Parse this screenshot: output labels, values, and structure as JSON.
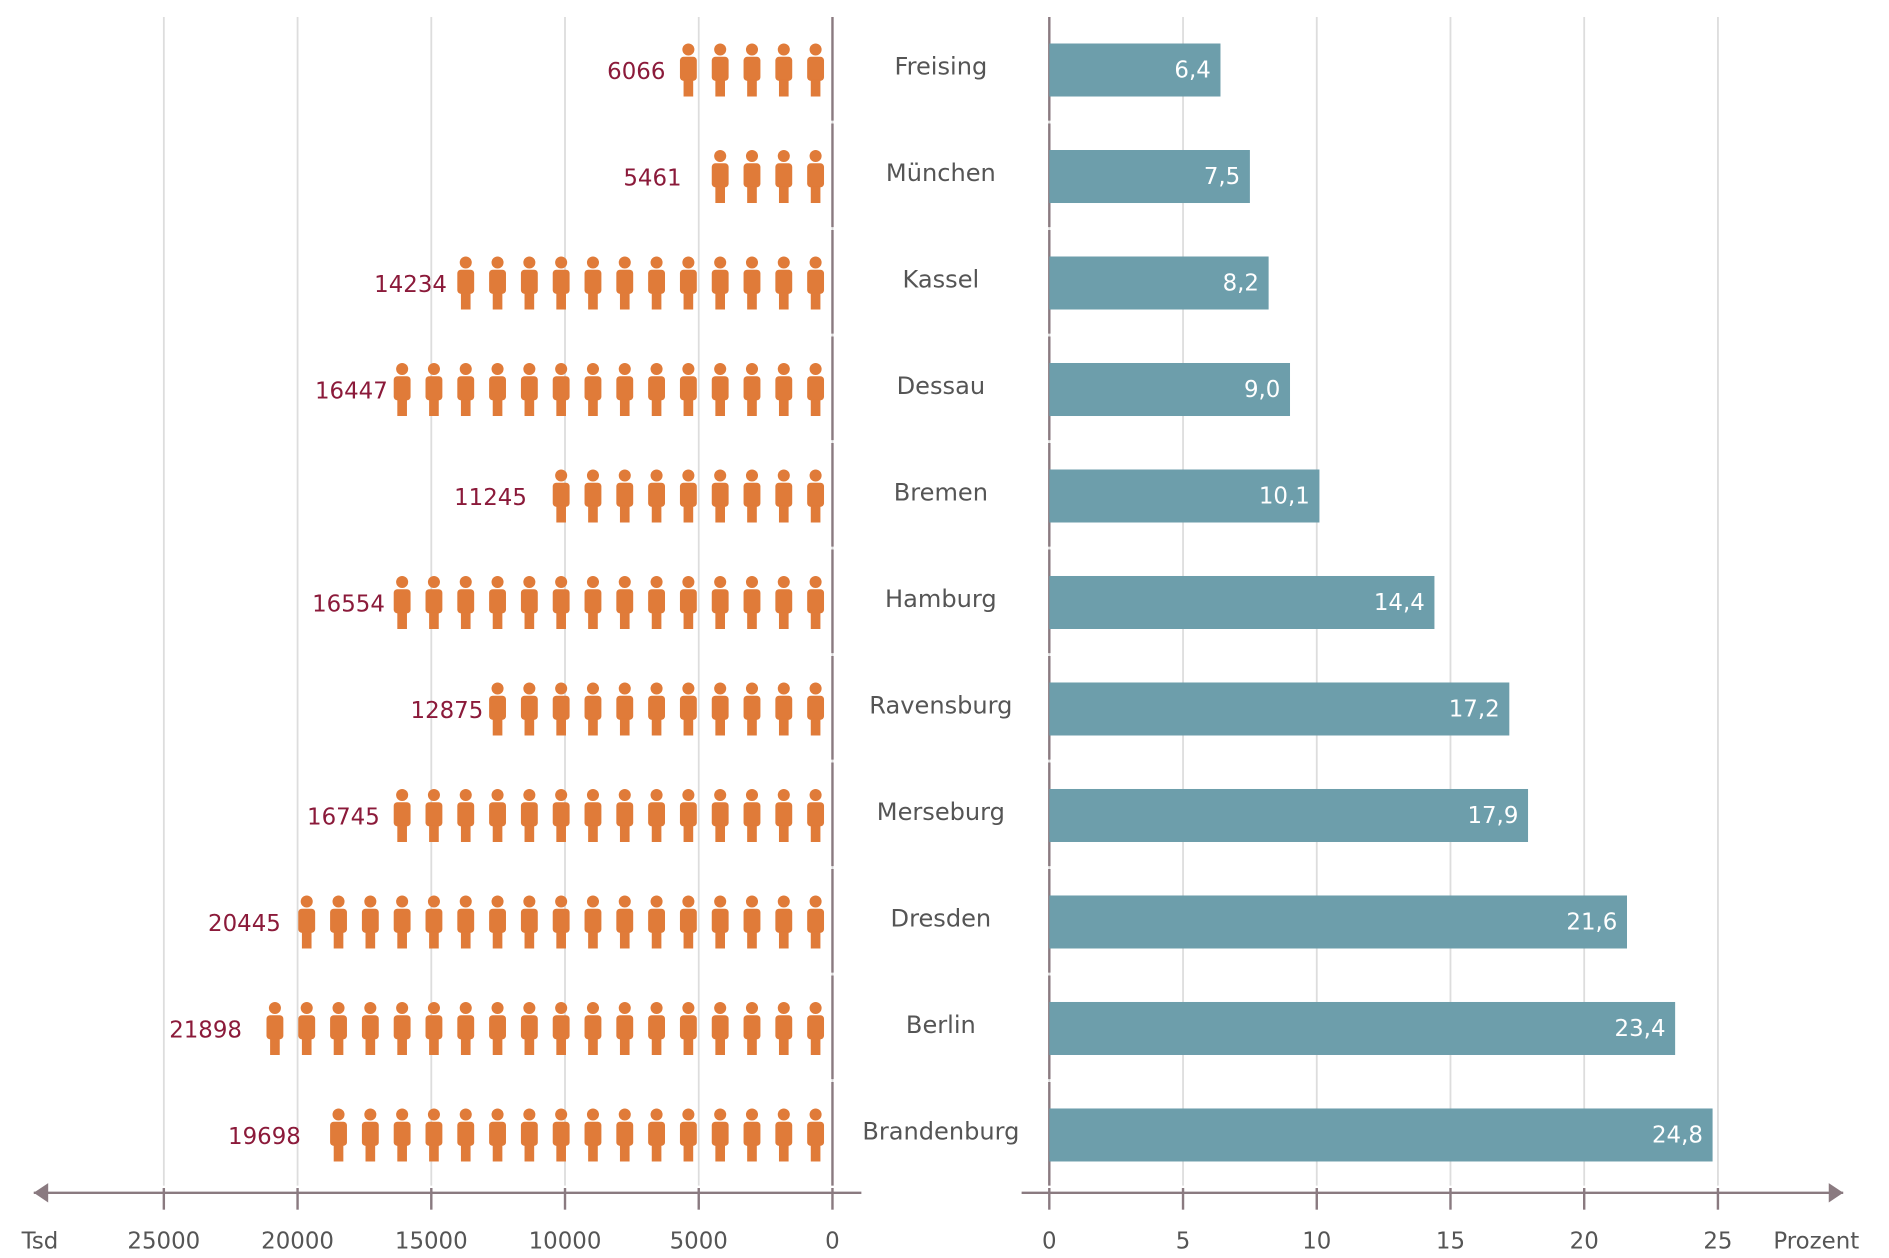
{
  "chart_data": [
    {
      "type": "pictogram",
      "categories": [
        "Freising",
        "München",
        "Kassel",
        "Dessau",
        "Bremen",
        "Hamburg",
        "Ravensburg",
        "Merseburg",
        "Dresden",
        "Berlin",
        "Brandenburg"
      ],
      "values": [
        6066,
        5461,
        14234,
        16447,
        11245,
        16554,
        12875,
        16745,
        20445,
        21898,
        19698
      ],
      "color": "#e07b39",
      "label_color": "#8b1a3a",
      "xlim": [
        0,
        30000
      ],
      "xticks": [
        0,
        5000,
        10000,
        15000,
        20000,
        25000
      ],
      "xlabel": "Tsd",
      "grid": true
    },
    {
      "type": "bar",
      "values": [
        6.4,
        7.5,
        8.2,
        9.0,
        10.1,
        14.4,
        17.2,
        17.9,
        21.6,
        23.4,
        24.8
      ],
      "value_labels": [
        "6,4",
        "7,5",
        "8,2",
        "9,0",
        "10,1",
        "14,4",
        "17,2",
        "17,9",
        "21,6",
        "23,4",
        "24,8"
      ],
      "color": "#6d9eab",
      "xlim": [
        0,
        30
      ],
      "xticks": [
        0,
        5,
        10,
        15,
        20,
        25
      ],
      "xlabel": "Prozent",
      "grid": true
    }
  ]
}
